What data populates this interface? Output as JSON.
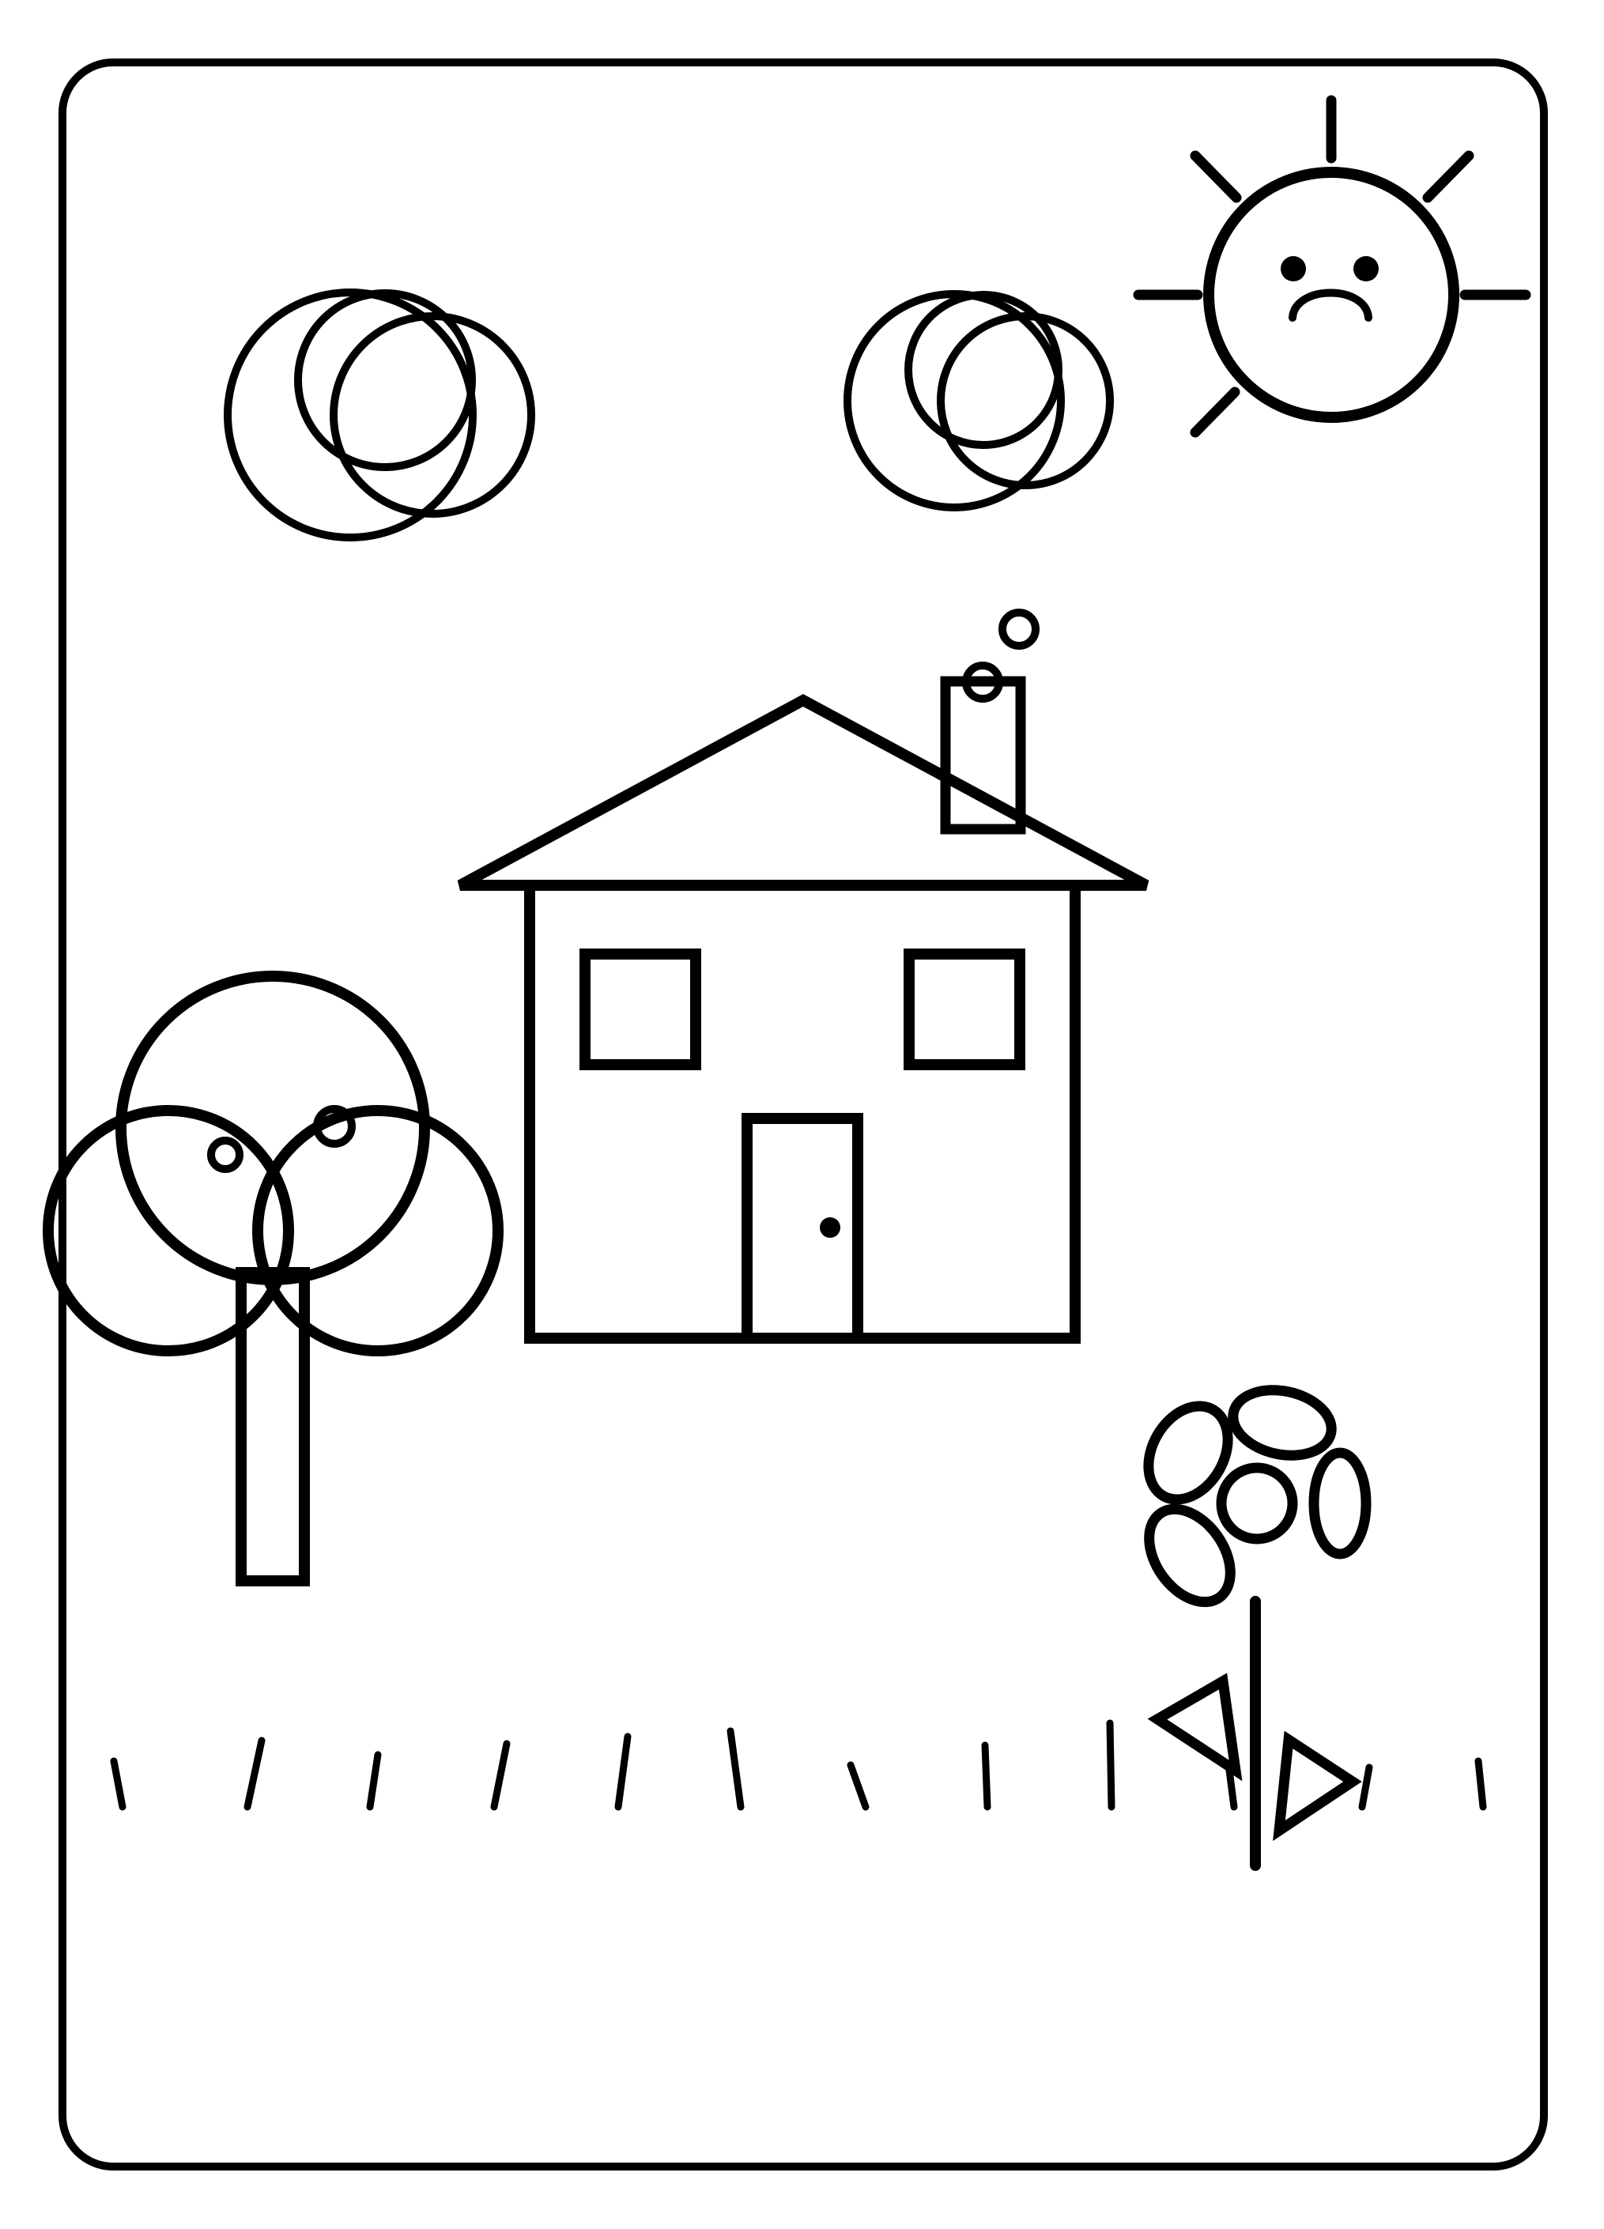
{
  "ink_color": "#000000",
  "paper_color": "#ffffff",
  "sun": {
    "face": "frowning"
  },
  "icons": [
    "frame-border",
    "cloud-icon",
    "sun-icon",
    "house-icon",
    "chimney-smoke-icon",
    "tree-icon",
    "flower-icon",
    "grass-icon"
  ]
}
